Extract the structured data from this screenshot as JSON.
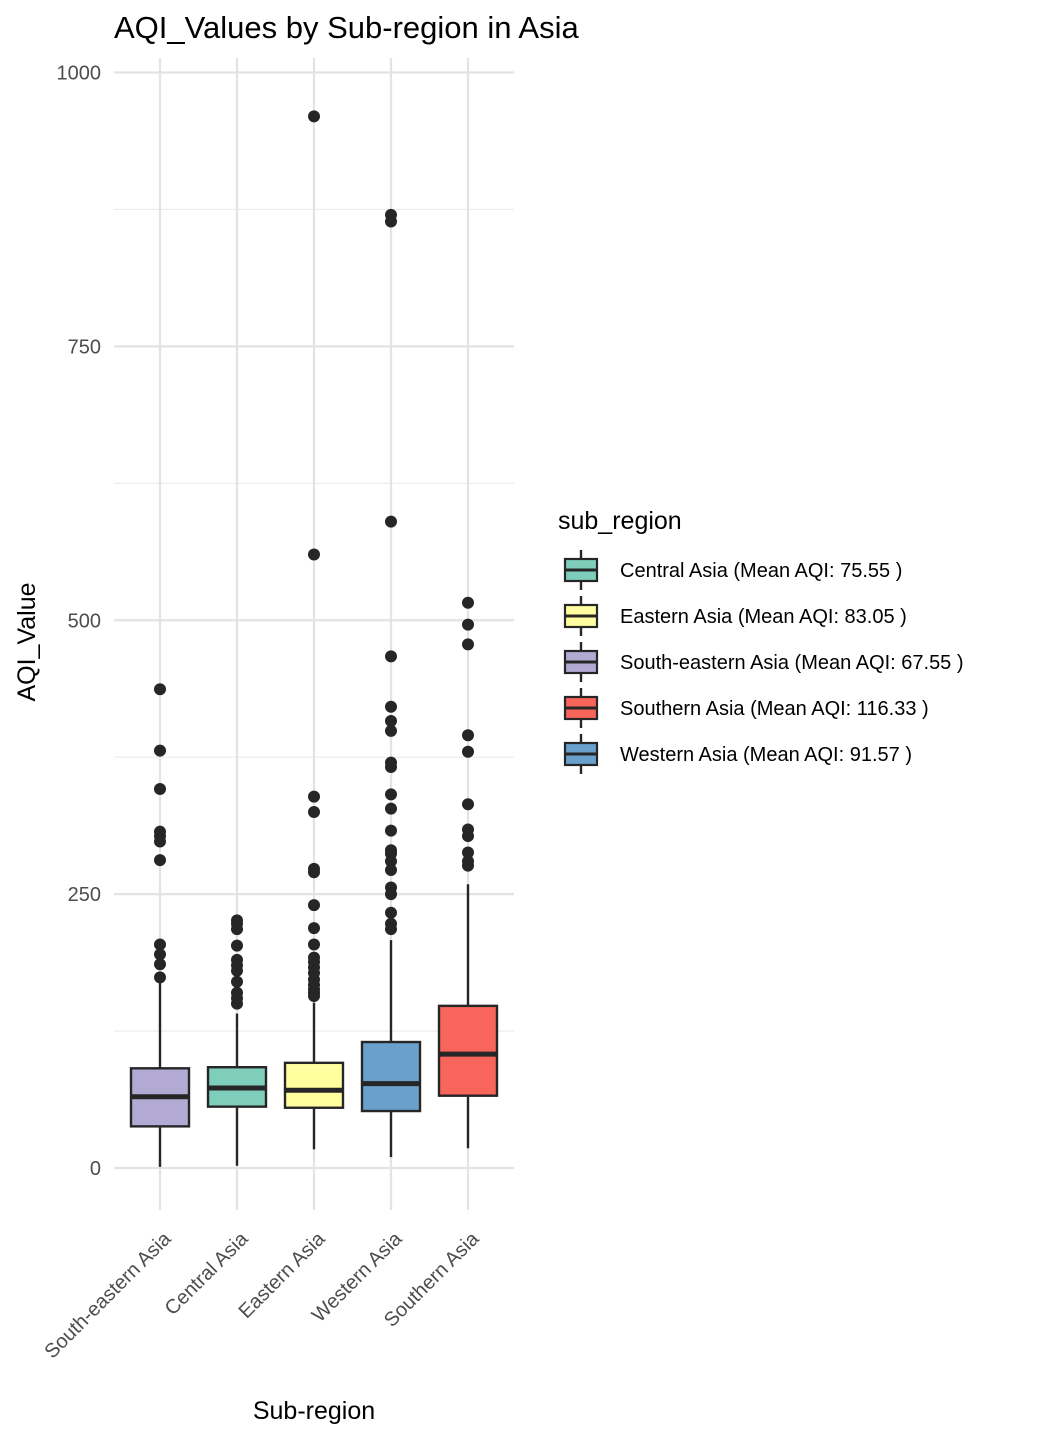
{
  "chart_data": {
    "type": "box",
    "title": "AQI_Values by Sub-region in Asia",
    "xlabel": "Sub-region",
    "ylabel": "AQI_Value",
    "ylim": [
      -40,
      1005
    ],
    "yticks": [
      0,
      250,
      500,
      750,
      1000
    ],
    "yminor": [
      125,
      375,
      625,
      875
    ],
    "grid": true,
    "legend": {
      "title": "sub_region",
      "position": "right",
      "entries": [
        {
          "label": "Central Asia (Mean AQI: 75.55 )",
          "color": "#7fcdbb"
        },
        {
          "label": "Eastern Asia (Mean AQI: 83.05 )",
          "color": "#ffffa0"
        },
        {
          "label": "South-eastern Asia (Mean AQI: 67.55 )",
          "color": "#b3aad3"
        },
        {
          "label": "Southern Asia (Mean AQI: 116.33 )",
          "color": "#f8655a"
        },
        {
          "label": "Western Asia (Mean AQI: 91.57 )",
          "color": "#6aa1cc"
        }
      ]
    },
    "categories": [
      "South-eastern Asia",
      "Central Asia",
      "Eastern Asia",
      "Western Asia",
      "Southern Asia"
    ],
    "boxes": [
      {
        "name": "South-eastern Asia",
        "color": "#b3aad3",
        "min": 1,
        "q1": 38,
        "median": 65,
        "q3": 91,
        "max": 170,
        "outliers": [
          174,
          186,
          195,
          204,
          281,
          298,
          303,
          307,
          346,
          381,
          437
        ]
      },
      {
        "name": "Central Asia",
        "color": "#7fcdbb",
        "min": 2,
        "q1": 56,
        "median": 73,
        "q3": 92,
        "max": 141,
        "outliers": [
          150,
          155,
          160,
          170,
          180,
          185,
          190,
          203,
          218,
          223,
          226
        ]
      },
      {
        "name": "Eastern Asia",
        "color": "#ffffa0",
        "min": 17,
        "q1": 55,
        "median": 71,
        "q3": 96,
        "max": 151,
        "outliers": [
          157,
          160,
          163,
          167,
          172,
          178,
          183,
          188,
          192,
          204,
          219,
          240,
          270,
          273,
          325,
          339,
          560,
          960
        ]
      },
      {
        "name": "Western Asia",
        "color": "#6aa1cc",
        "min": 10,
        "q1": 52,
        "median": 77,
        "q3": 115,
        "max": 208,
        "outliers": [
          218,
          223,
          233,
          250,
          256,
          272,
          280,
          287,
          290,
          308,
          328,
          341,
          366,
          370,
          399,
          408,
          421,
          467,
          590,
          864,
          870
        ]
      },
      {
        "name": "Southern Asia",
        "color": "#f8655a",
        "min": 18,
        "q1": 66,
        "median": 104,
        "q3": 148,
        "max": 259,
        "outliers": [
          276,
          280,
          288,
          303,
          309,
          332,
          380,
          395,
          478,
          496,
          516
        ]
      }
    ]
  }
}
